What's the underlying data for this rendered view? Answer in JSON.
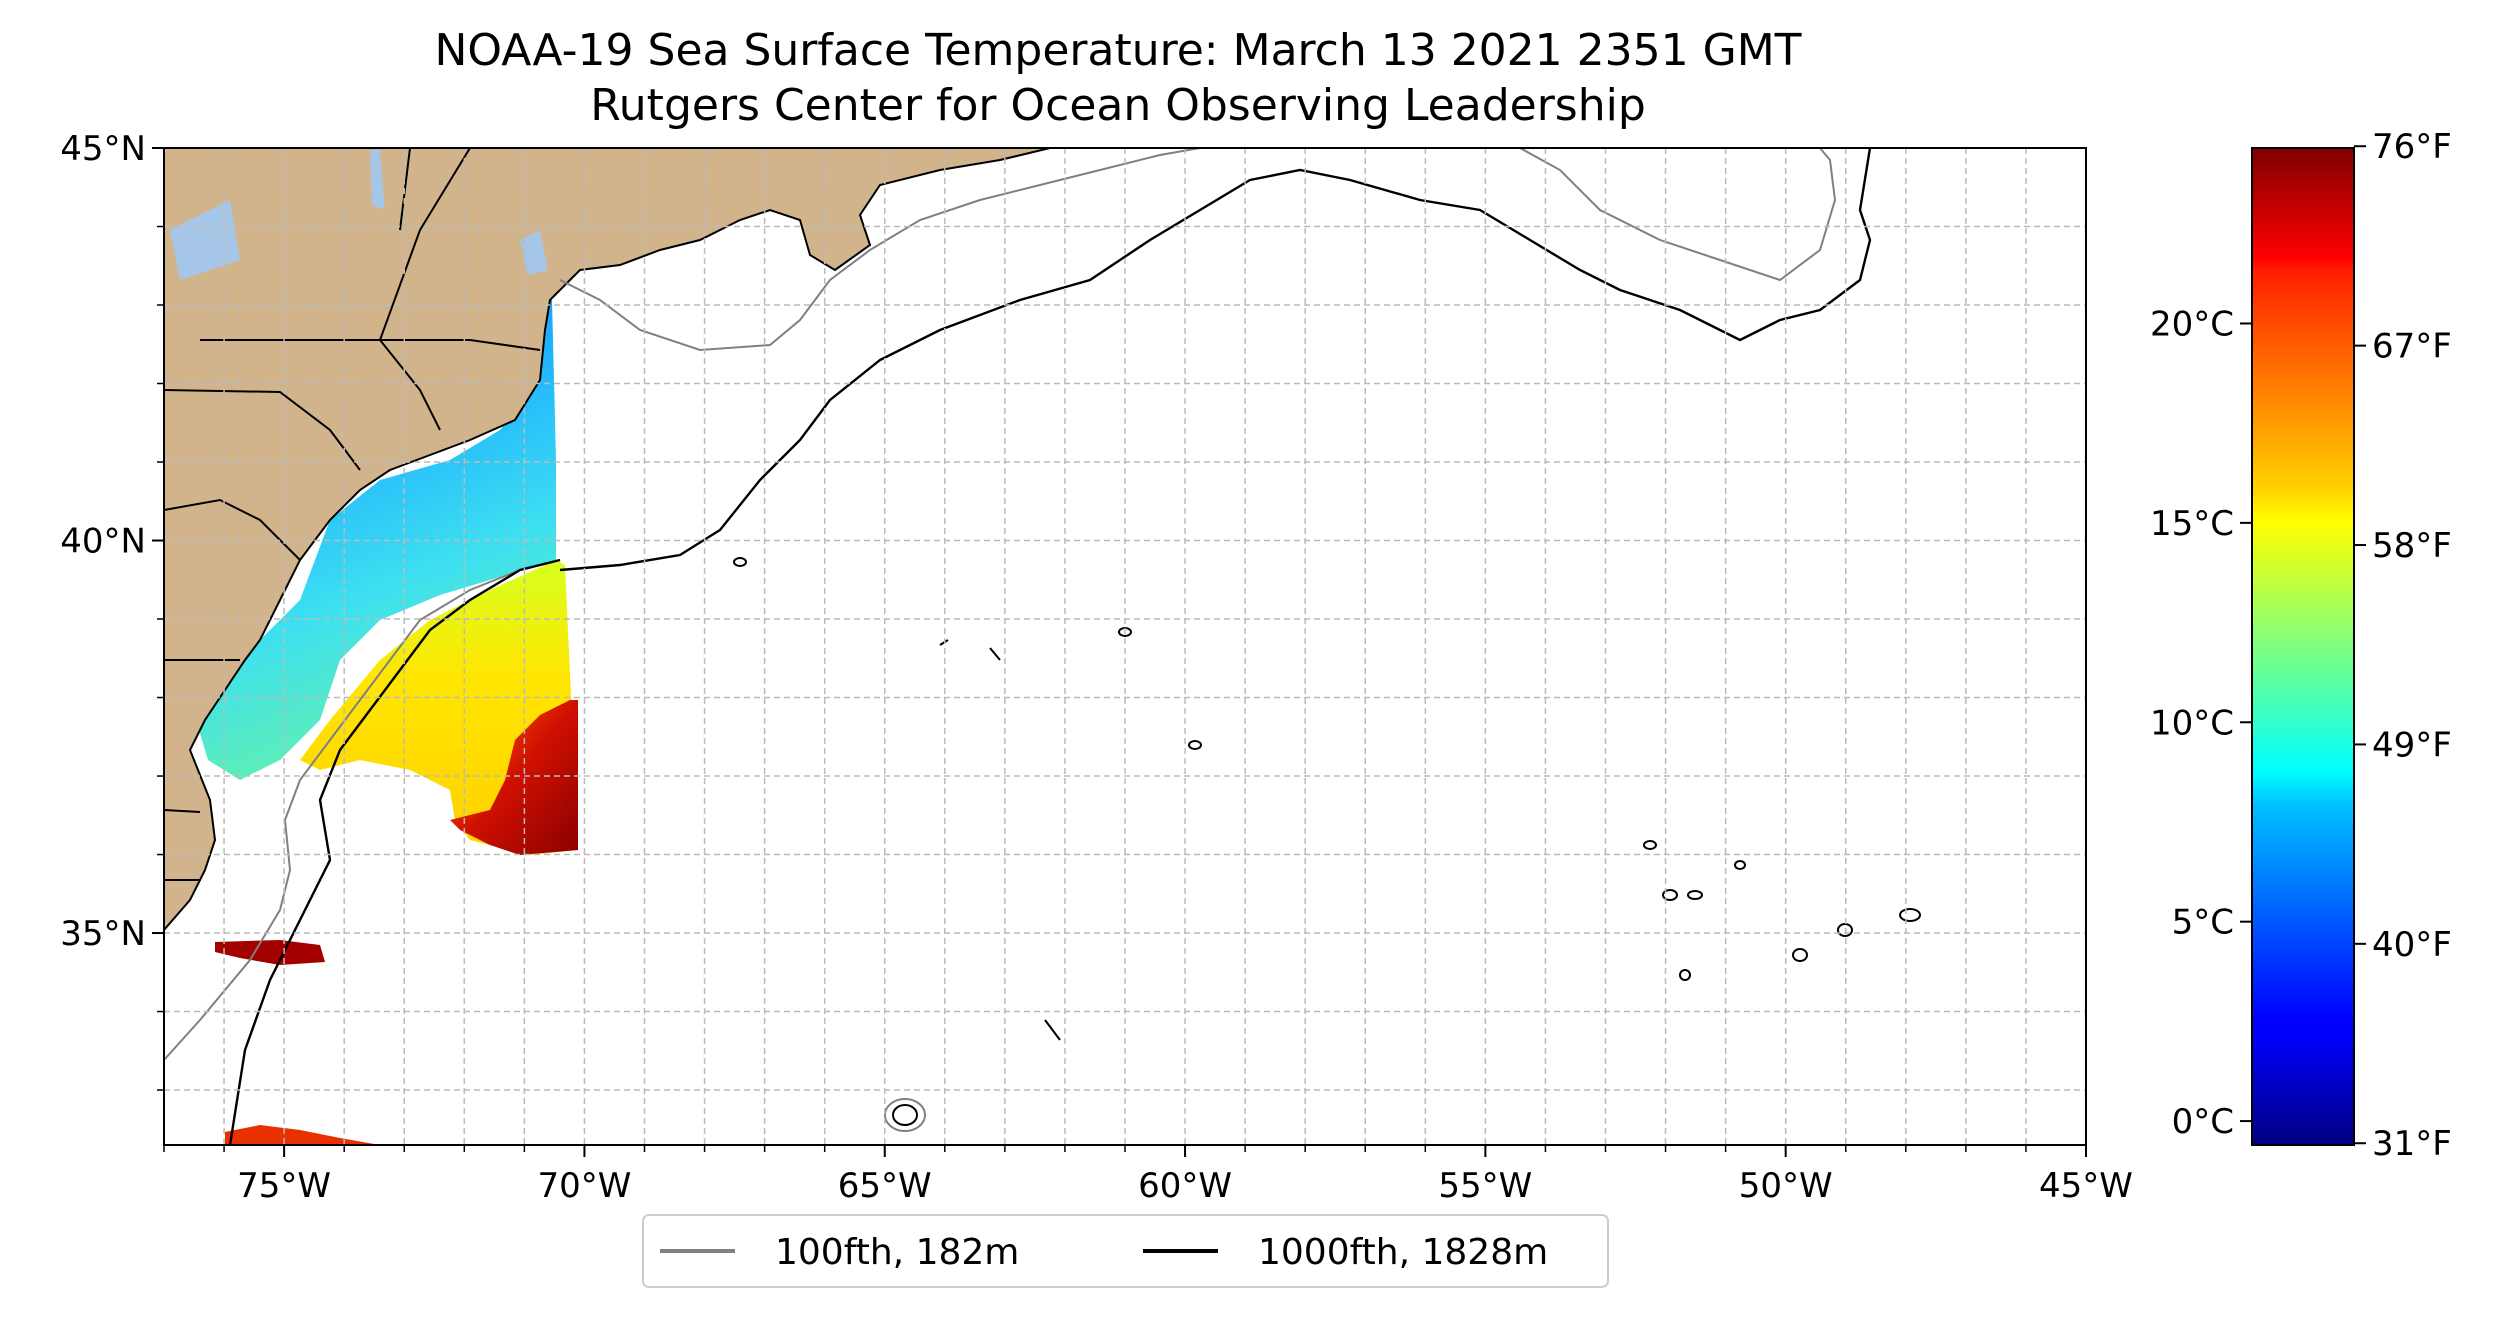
{
  "title": {
    "line1": "NOAA-19 Sea Surface Temperature: March 13 2021 2351 GMT",
    "line2": "Rutgers Center for Ocean Observing Leadership"
  },
  "map": {
    "lon_range": [
      -77,
      -45
    ],
    "lat_range": [
      32.3,
      45
    ],
    "x_ticks": [
      {
        "value": -75,
        "label": "75°W"
      },
      {
        "value": -70,
        "label": "70°W"
      },
      {
        "value": -65,
        "label": "65°W"
      },
      {
        "value": -60,
        "label": "60°W"
      },
      {
        "value": -55,
        "label": "55°W"
      },
      {
        "value": -50,
        "label": "50°W"
      },
      {
        "value": -45,
        "label": "45°W"
      }
    ],
    "y_ticks": [
      {
        "value": 45,
        "label": "45°N"
      },
      {
        "value": 40,
        "label": "40°N"
      },
      {
        "value": 35,
        "label": "35°N"
      }
    ],
    "gridlines": true,
    "colors": {
      "land": "#d2b48c",
      "lakes": "#a6c6e8",
      "grid": "#bbbbbb",
      "contour_100fth": "#808080",
      "contour_1000fth": "#000000"
    }
  },
  "legend": {
    "placement": "bottom-center",
    "items": [
      {
        "label": "100fth, 182m",
        "color": "#808080"
      },
      {
        "label": "1000fth, 1828m",
        "color": "#000000"
      }
    ]
  },
  "colorbar": {
    "colormap": "jet",
    "range_celsius": [
      -0.6,
      24.4
    ],
    "celsius_ticks": [
      {
        "value": 0,
        "label": "0°C"
      },
      {
        "value": 5,
        "label": "5°C"
      },
      {
        "value": 10,
        "label": "10°C"
      },
      {
        "value": 15,
        "label": "15°C"
      },
      {
        "value": 20,
        "label": "20°C"
      }
    ],
    "fahrenheit_ticks": [
      {
        "value": 31,
        "label": "31°F"
      },
      {
        "value": 40,
        "label": "40°F"
      },
      {
        "value": 49,
        "label": "49°F"
      },
      {
        "value": 58,
        "label": "58°F"
      },
      {
        "value": 67,
        "label": "67°F"
      },
      {
        "value": 76,
        "label": "76°F"
      }
    ]
  }
}
